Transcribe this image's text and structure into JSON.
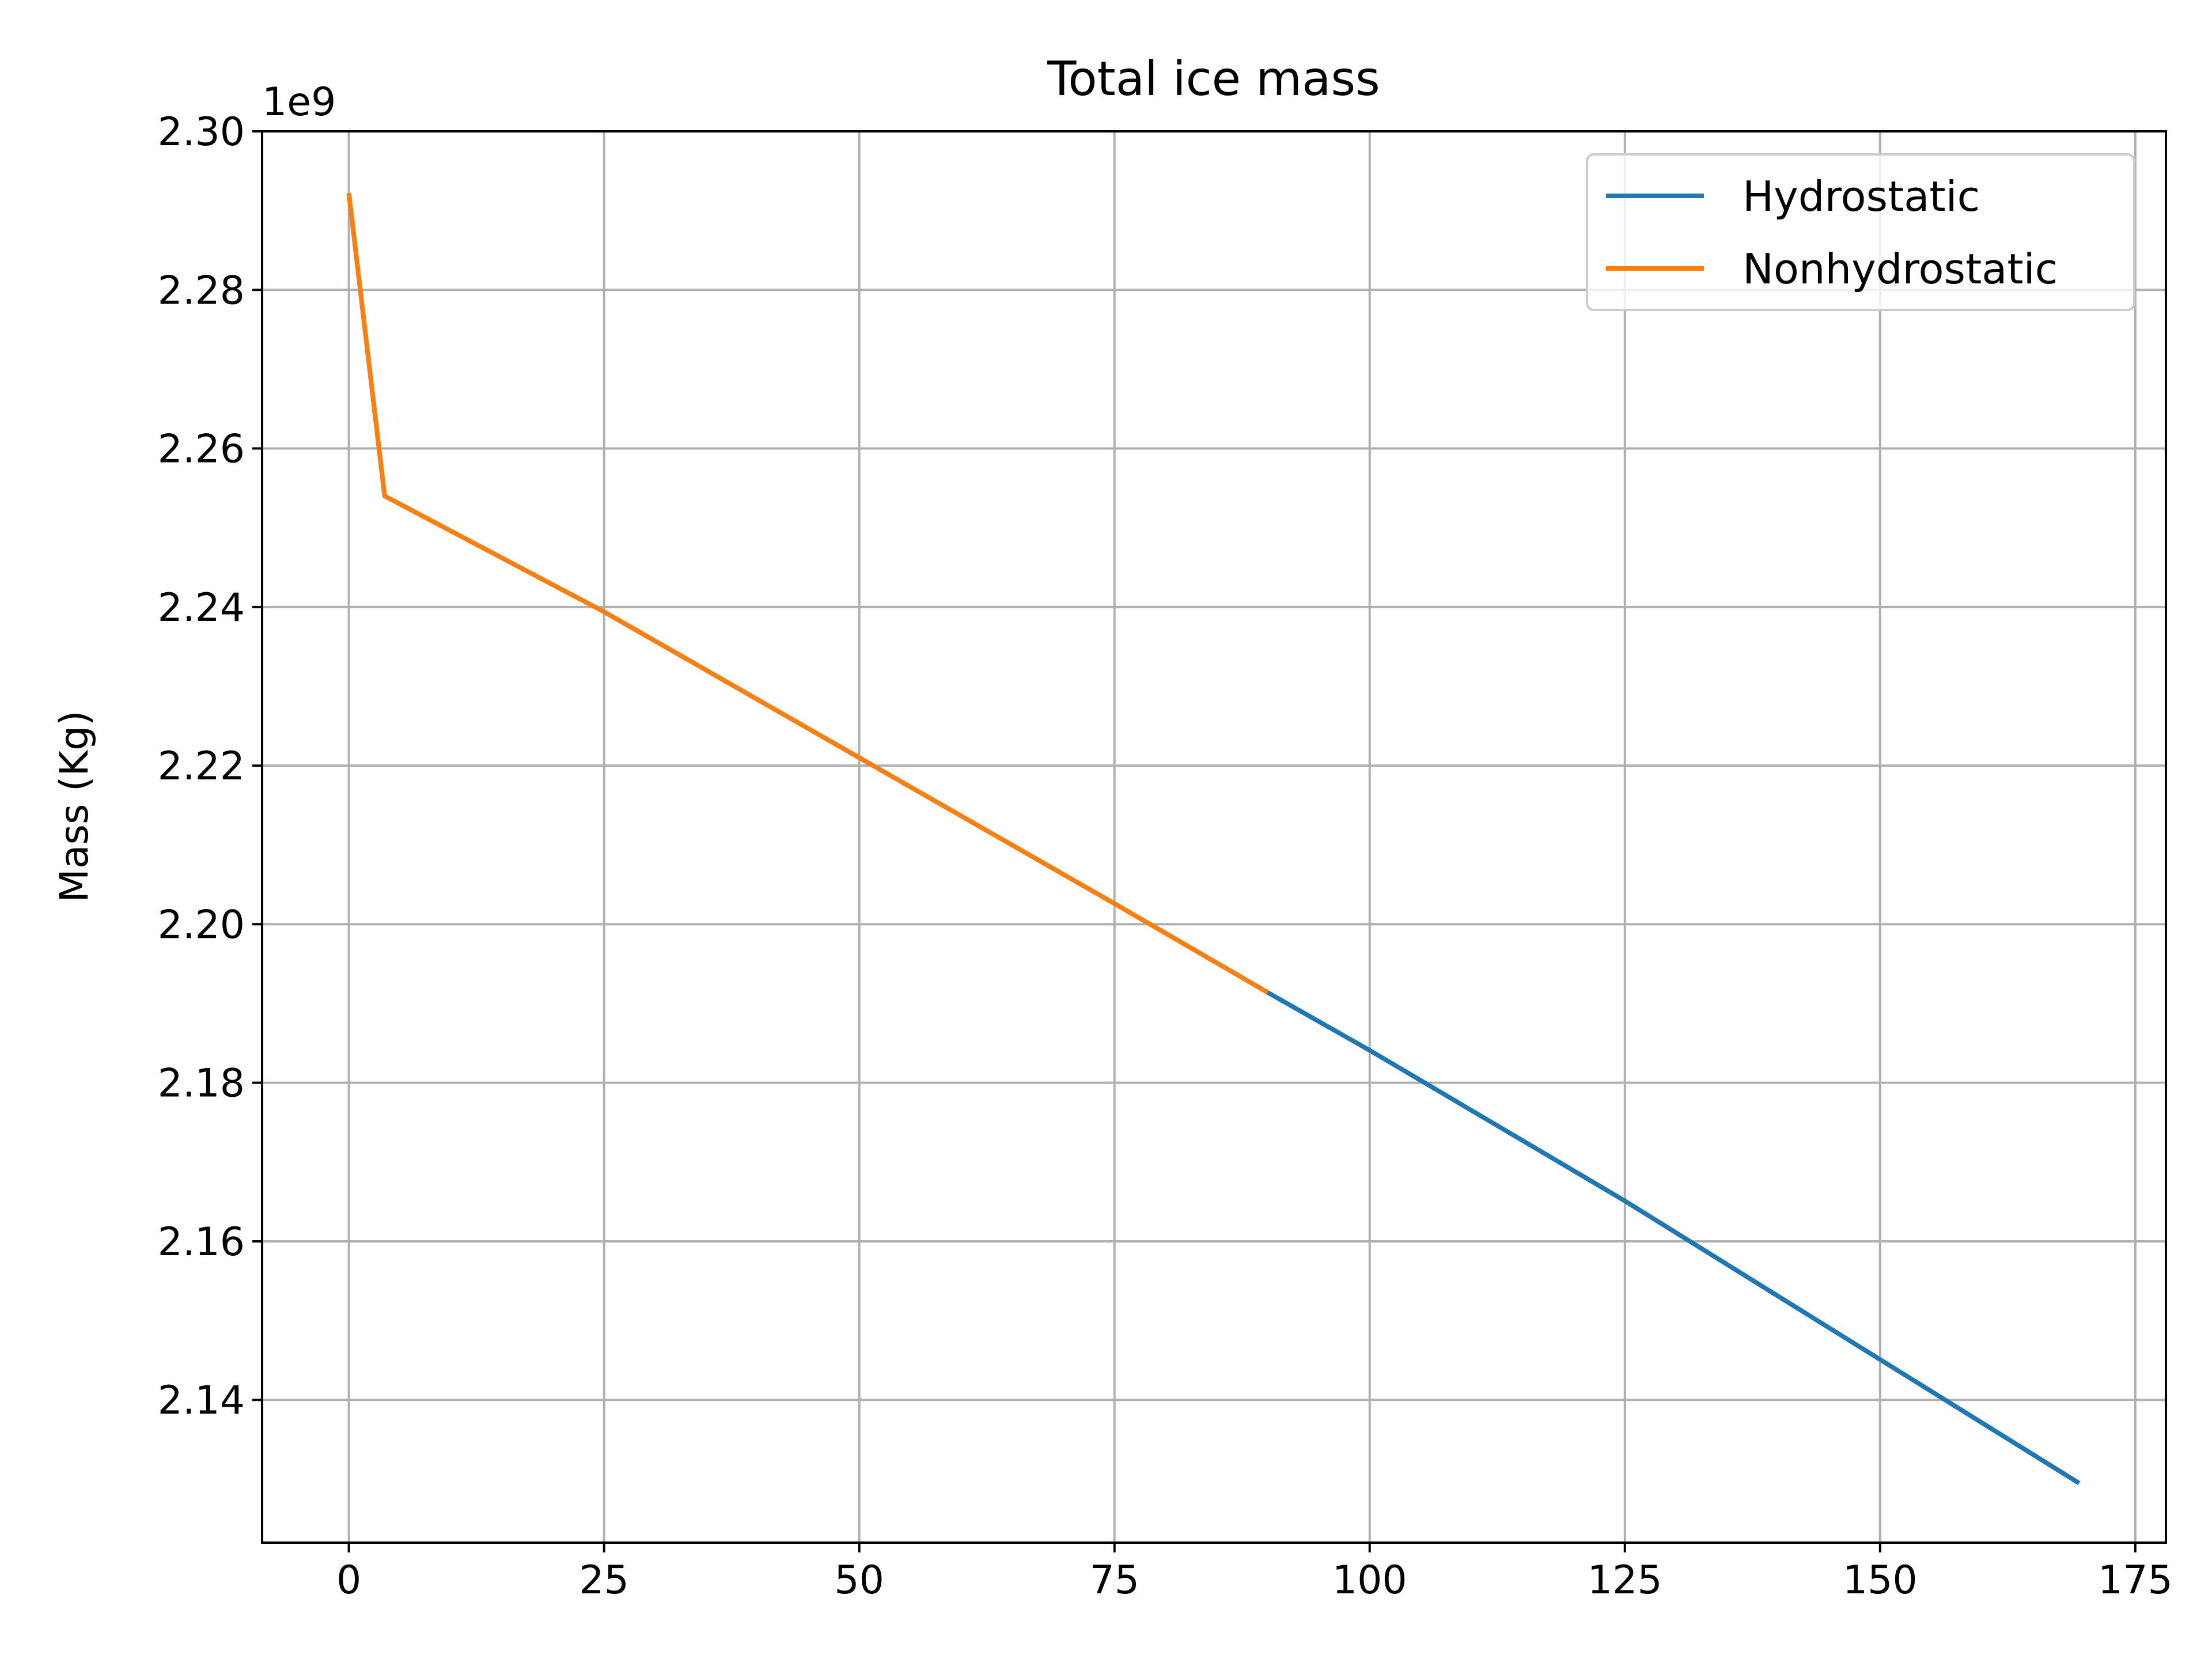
{
  "chart_data": {
    "type": "line",
    "title": "Total ice mass",
    "xlabel": "",
    "ylabel": "Mass (Kg)",
    "y_offset_label": "1e9",
    "xlim": [
      -8.5,
      178
    ],
    "ylim": [
      2.122,
      2.3
    ],
    "x_ticks": [
      0,
      25,
      50,
      75,
      100,
      125,
      150,
      175
    ],
    "x_tick_labels": [
      "0",
      "25",
      "50",
      "75",
      "100",
      "125",
      "150",
      "175"
    ],
    "y_ticks": [
      2.14,
      2.16,
      2.18,
      2.2,
      2.22,
      2.24,
      2.26,
      2.28,
      2.3
    ],
    "y_tick_labels": [
      "2.14",
      "2.16",
      "2.18",
      "2.20",
      "2.22",
      "2.24",
      "2.26",
      "2.28",
      "2.30"
    ],
    "grid": true,
    "legend_position": "top-right",
    "series": [
      {
        "name": "Hydrostatic",
        "color": "#1f77b4",
        "x": [
          0,
          3.5,
          25,
          50,
          75,
          90,
          100,
          125,
          150,
          169.5
        ],
        "y": [
          2.2922,
          2.254,
          2.2394,
          2.221,
          2.2026,
          2.1914,
          2.1841,
          2.1651,
          2.1451,
          2.1295
        ]
      },
      {
        "name": "Nonhydrostatic",
        "color": "#ff7f0e",
        "x": [
          0,
          3.5,
          25,
          50,
          75,
          90
        ],
        "y": [
          2.2922,
          2.254,
          2.2394,
          2.221,
          2.2026,
          2.1914
        ]
      }
    ]
  }
}
